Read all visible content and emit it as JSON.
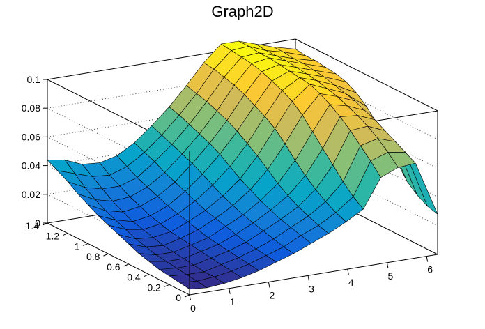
{
  "chart_data": {
    "type": "surface",
    "title": "Graph2D",
    "xlabel": "",
    "ylabel": "",
    "zlabel": "",
    "x_ticks": [
      "0",
      "1",
      "2",
      "3",
      "4",
      "5",
      "6"
    ],
    "y_ticks": [
      "0",
      "0.2",
      "0.4",
      "0.6",
      "0.8",
      "1",
      "1.2",
      "1.4"
    ],
    "z_ticks": [
      "0",
      "0.02",
      "0.04",
      "0.06",
      "0.08",
      "0.1"
    ],
    "xlim": [
      0,
      6.28
    ],
    "ylim": [
      0,
      1.4
    ],
    "zlim": [
      0,
      0.1
    ],
    "grid": true,
    "colormap": [
      "#352a87",
      "#0f5cdd",
      "#1481d6",
      "#06a4ca",
      "#2eb7a4",
      "#87bf77",
      "#d1bb59",
      "#fec832",
      "#f9fb0e"
    ],
    "x_values": [
      0.0,
      0.44,
      0.88,
      1.32,
      1.76,
      2.2,
      2.64,
      3.08,
      3.52,
      3.96,
      4.4,
      4.84,
      5.28,
      5.72,
      6.28
    ],
    "y_values": [
      0.0,
      0.1,
      0.2,
      0.3,
      0.4,
      0.5,
      0.6,
      0.7,
      0.8,
      0.9,
      1.0,
      1.1,
      1.2,
      1.3,
      1.4
    ],
    "z_values": [
      [
        0.004,
        0.003,
        0.004,
        0.006,
        0.009,
        0.013,
        0.017,
        0.022,
        0.027,
        0.033,
        0.04,
        0.06,
        0.065,
        0.066,
        0.028
      ],
      [
        0.005,
        0.004,
        0.005,
        0.007,
        0.01,
        0.014,
        0.018,
        0.024,
        0.029,
        0.036,
        0.045,
        0.068,
        0.072,
        0.07,
        0.03
      ],
      [
        0.006,
        0.005,
        0.005,
        0.008,
        0.011,
        0.015,
        0.02,
        0.026,
        0.032,
        0.04,
        0.052,
        0.075,
        0.078,
        0.074,
        0.034
      ],
      [
        0.007,
        0.006,
        0.006,
        0.009,
        0.012,
        0.016,
        0.022,
        0.028,
        0.035,
        0.045,
        0.06,
        0.082,
        0.083,
        0.078,
        0.04
      ],
      [
        0.009,
        0.007,
        0.007,
        0.01,
        0.013,
        0.018,
        0.024,
        0.031,
        0.039,
        0.051,
        0.068,
        0.088,
        0.087,
        0.082,
        0.05
      ],
      [
        0.011,
        0.008,
        0.008,
        0.011,
        0.014,
        0.02,
        0.026,
        0.034,
        0.044,
        0.058,
        0.076,
        0.093,
        0.09,
        0.085,
        0.06
      ],
      [
        0.014,
        0.01,
        0.009,
        0.012,
        0.016,
        0.022,
        0.029,
        0.038,
        0.05,
        0.066,
        0.084,
        0.097,
        0.093,
        0.088,
        0.07
      ],
      [
        0.017,
        0.012,
        0.011,
        0.013,
        0.018,
        0.024,
        0.032,
        0.042,
        0.056,
        0.073,
        0.09,
        0.1,
        0.095,
        0.09,
        0.078
      ],
      [
        0.02,
        0.015,
        0.013,
        0.015,
        0.02,
        0.027,
        0.036,
        0.047,
        0.061,
        0.078,
        0.094,
        0.101,
        0.097,
        0.092,
        0.084
      ],
      [
        0.023,
        0.018,
        0.015,
        0.017,
        0.022,
        0.03,
        0.04,
        0.052,
        0.066,
        0.082,
        0.097,
        0.102,
        0.098,
        0.094,
        0.088
      ],
      [
        0.027,
        0.021,
        0.018,
        0.02,
        0.025,
        0.033,
        0.044,
        0.056,
        0.07,
        0.086,
        0.1,
        0.103,
        0.099,
        0.095,
        0.09
      ],
      [
        0.031,
        0.025,
        0.022,
        0.023,
        0.028,
        0.036,
        0.047,
        0.059,
        0.073,
        0.089,
        0.102,
        0.104,
        0.1,
        0.096,
        0.091
      ],
      [
        0.036,
        0.03,
        0.027,
        0.027,
        0.031,
        0.04,
        0.05,
        0.062,
        0.076,
        0.091,
        0.103,
        0.104,
        0.1,
        0.096,
        0.092
      ],
      [
        0.04,
        0.036,
        0.032,
        0.031,
        0.035,
        0.043,
        0.053,
        0.065,
        0.078,
        0.093,
        0.104,
        0.105,
        0.1,
        0.097,
        0.092
      ],
      [
        0.044,
        0.042,
        0.037,
        0.036,
        0.039,
        0.046,
        0.056,
        0.067,
        0.08,
        0.094,
        0.105,
        0.105,
        0.101,
        0.097,
        0.093
      ]
    ]
  }
}
